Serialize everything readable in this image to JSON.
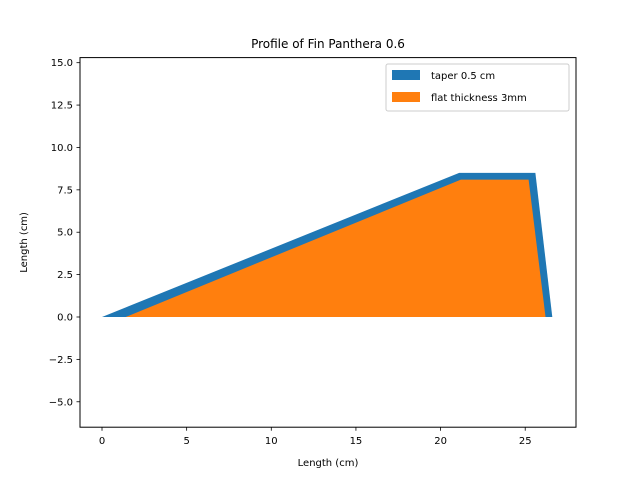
{
  "chart_data": {
    "type": "area",
    "title": "Profile of Fin Panthera 0.6",
    "xlabel": "Length (cm)",
    "ylabel": "Length (cm)",
    "xlim": [
      -1.3,
      28.0
    ],
    "ylim": [
      -6.5,
      15.3
    ],
    "xticks": [
      0,
      5,
      10,
      15,
      20,
      25
    ],
    "yticks": [
      -5.0,
      -2.5,
      0.0,
      2.5,
      5.0,
      7.5,
      10.0,
      12.5,
      15.0
    ],
    "ytick_labels": [
      "−5.0",
      "−2.5",
      "0.0",
      "2.5",
      "5.0",
      "7.5",
      "10.0",
      "12.5",
      "15.0"
    ],
    "grid": false,
    "legend_position": "top-right",
    "series": [
      {
        "name": "taper 0.5 cm",
        "color": "#1f77b4",
        "polygon": [
          [
            0.0,
            0.0
          ],
          [
            21.1,
            8.5
          ],
          [
            25.6,
            8.5
          ],
          [
            26.6,
            0.0
          ]
        ]
      },
      {
        "name": "flat thickness 3mm",
        "color": "#ff7f0e",
        "polygon": [
          [
            1.4,
            0.0
          ],
          [
            21.2,
            8.1
          ],
          [
            25.2,
            8.1
          ],
          [
            26.2,
            0.0
          ]
        ]
      }
    ]
  }
}
